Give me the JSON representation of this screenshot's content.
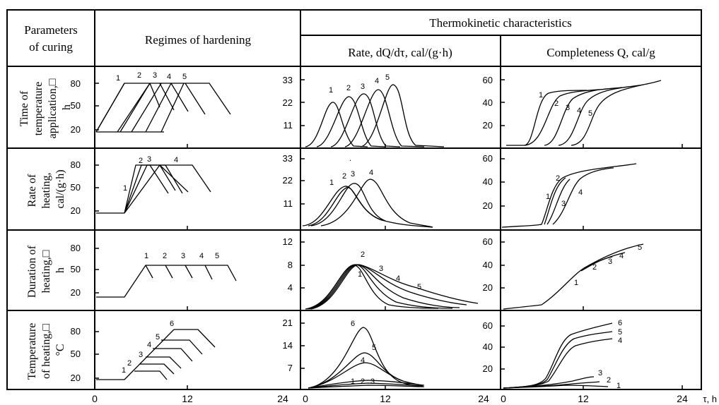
{
  "header": {
    "parameters": [
      "Parameters",
      "of curing"
    ],
    "regimes": "Regimes of hardening",
    "thermo": "Thermokinetic characteristics",
    "rate": "Rate, dQ/dτ, cal/(g·h)",
    "completeness": "Completeness Q, cal/g"
  },
  "rows": [
    {
      "label": [
        "Time of",
        "temperature",
        "application,□",
        "h"
      ],
      "regime_ticks": [
        "80",
        "50",
        "20"
      ],
      "rate_ticks": [
        "33",
        "22",
        "11"
      ],
      "comp_ticks": [
        "60",
        "40",
        "20"
      ],
      "regime_curves": [
        "1",
        "2",
        "3",
        "4",
        "5"
      ],
      "rate_curves": [
        "1",
        "2",
        "3",
        "4",
        "5"
      ],
      "comp_curves": [
        "1",
        "2",
        "3",
        "4",
        "5"
      ],
      "extra_mark": ""
    },
    {
      "label": [
        "Rate of",
        "heating,",
        "cal/(g·h)"
      ],
      "regime_ticks": [
        "80",
        "50",
        "20"
      ],
      "rate_ticks": [
        "33",
        "22",
        "11"
      ],
      "comp_ticks": [
        "60",
        "40",
        "20"
      ],
      "regime_curves": [
        "1",
        "2",
        "3",
        "4"
      ],
      "rate_curves": [
        "1",
        "2",
        "3",
        "4"
      ],
      "comp_curves": [
        "1",
        "2",
        "3",
        "4"
      ],
      "extra_mark": "."
    },
    {
      "label": [
        "Duration of",
        "heating,□",
        "h"
      ],
      "regime_ticks": [
        "80",
        "50",
        "20"
      ],
      "rate_ticks": [
        "12",
        "8",
        "4"
      ],
      "comp_ticks": [
        "60",
        "40",
        "20"
      ],
      "regime_curves": [
        "1",
        "2",
        "3",
        "4",
        "5"
      ],
      "rate_curves": [
        "1",
        "2",
        "3",
        "4",
        "5"
      ],
      "comp_curves": [
        "1",
        "2",
        "3",
        "4",
        "5"
      ],
      "extra_mark": ""
    },
    {
      "label": [
        "Temperature",
        "of heating,□",
        "°C"
      ],
      "regime_ticks": [
        "80",
        "50",
        "20"
      ],
      "rate_ticks": [
        "21",
        "14",
        "7"
      ],
      "comp_ticks": [
        "60",
        "40",
        "20"
      ],
      "regime_curves": [
        "1",
        "2",
        "3",
        "4",
        "5",
        "6"
      ],
      "rate_curves": [
        "1",
        "2",
        "3",
        "4",
        "5",
        "6"
      ],
      "comp_curves": [
        "1",
        "2",
        "3",
        "4",
        "5",
        "6"
      ],
      "extra_mark": ""
    }
  ],
  "x_axis": {
    "ticks": [
      "0",
      "12",
      "24"
    ],
    "unit": "τ, h"
  }
}
